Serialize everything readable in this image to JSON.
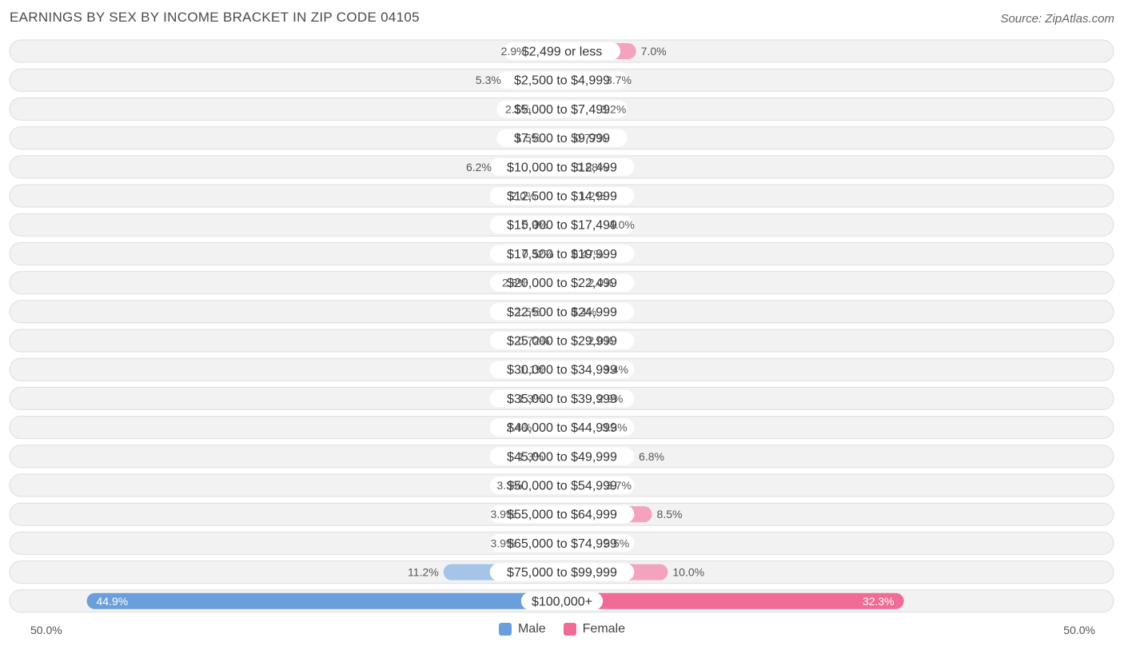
{
  "title": "EARNINGS BY SEX BY INCOME BRACKET IN ZIP CODE 04105",
  "source": "Source: ZipAtlas.com",
  "axis": {
    "left_label": "50.0%",
    "right_label": "50.0%"
  },
  "legend": {
    "male": "Male",
    "female": "Female"
  },
  "colors": {
    "male": "#a4c4e8",
    "female": "#f4a3be",
    "male_strong": "#6a9fdc",
    "female_strong": "#f06b96",
    "row_bg": "#f2f2f2",
    "row_border": "#dedede"
  },
  "chart_data": {
    "type": "bar",
    "orientation": "horizontal-diverging",
    "title": "EARNINGS BY SEX BY INCOME BRACKET IN ZIP CODE 04105",
    "xlim": [
      -50,
      50
    ],
    "categories": [
      "$2,499 or less",
      "$2,500 to $4,999",
      "$5,000 to $7,499",
      "$7,500 to $9,999",
      "$10,000 to $12,499",
      "$12,500 to $14,999",
      "$15,000 to $17,499",
      "$17,500 to $19,999",
      "$20,000 to $22,499",
      "$22,500 to $24,999",
      "$25,000 to $29,999",
      "$30,000 to $34,999",
      "$35,000 to $39,999",
      "$40,000 to $44,999",
      "$45,000 to $49,999",
      "$50,000 to $54,999",
      "$55,000 to $64,999",
      "$65,000 to $74,999",
      "$75,000 to $99,999",
      "$100,000+"
    ],
    "series": [
      {
        "name": "Male",
        "values": [
          2.9,
          5.3,
          2.5,
          1.5,
          6.2,
          2.0,
          0.9,
          0.32,
          2.8,
          1.5,
          0.72,
          1.1,
          1.3,
          2.4,
          1.3,
          3.3,
          3.9,
          3.9,
          11.2,
          44.9
        ],
        "labels": [
          "2.9%",
          "5.3%",
          "2.5%",
          "1.5%",
          "6.2%",
          "2.0%",
          "0.9%",
          "0.32%",
          "2.8%",
          "1.5%",
          "0.72%",
          "1.1%",
          "1.3%",
          "2.4%",
          "1.3%",
          "3.3%",
          "3.9%",
          "3.9%",
          "11.2%",
          "44.9%"
        ]
      },
      {
        "name": "Female",
        "values": [
          7.0,
          3.7,
          3.2,
          0.77,
          0.88,
          1.2,
          4.0,
          0.47,
          2.0,
          0.4,
          2.0,
          3.4,
          2.9,
          3.3,
          6.8,
          3.7,
          8.5,
          3.5,
          10.0,
          32.3
        ],
        "labels": [
          "7.0%",
          "3.7%",
          "3.2%",
          "0.77%",
          "0.88%",
          "1.2%",
          "4.0%",
          "0.47%",
          "2.0%",
          "0.4%",
          "2.0%",
          "3.4%",
          "2.9%",
          "3.3%",
          "6.8%",
          "3.7%",
          "8.5%",
          "3.5%",
          "10.0%",
          "32.3%"
        ]
      }
    ],
    "legend_position": "bottom-center"
  }
}
